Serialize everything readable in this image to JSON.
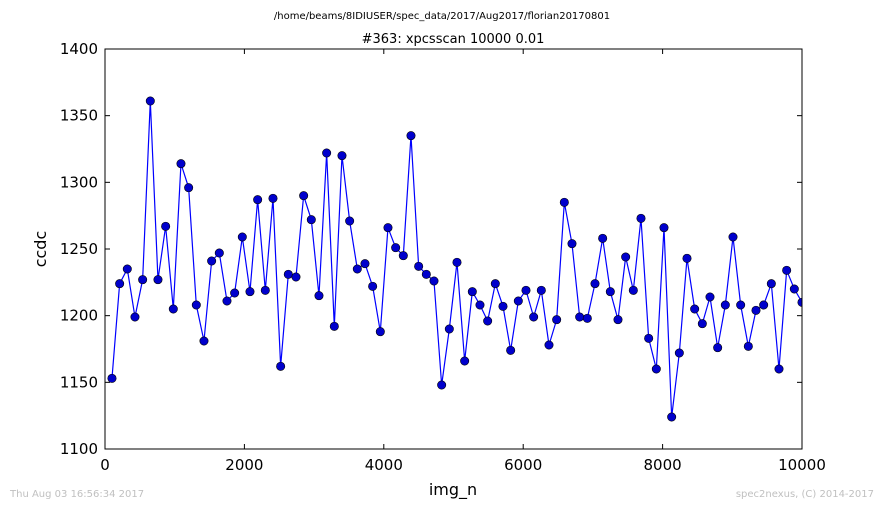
{
  "suptitle": "/home/beams/8IDIUSER/spec_data/2017/Aug2017/florian20170801",
  "footer": {
    "left": "Thu Aug 03 16:56:34 2017",
    "right": "spec2nexus, (C) 2014-2017"
  },
  "colors": {
    "line": "#0000ff",
    "marker": "#0000cc",
    "axes": "#000000",
    "footer_text": "#c0c0c0"
  },
  "chart_data": {
    "type": "line",
    "title": "#363: xpcsscan 10000 0.01",
    "xlabel": "img_n",
    "ylabel": "ccdc",
    "xlim": [
      0,
      10000
    ],
    "ylim": [
      1100,
      1400
    ],
    "xticks": [
      0,
      2000,
      4000,
      6000,
      8000,
      10000
    ],
    "yticks": [
      1100,
      1150,
      1200,
      1250,
      1300,
      1350,
      1400
    ],
    "grid": false,
    "legend": "none",
    "series": [
      {
        "marker": "circle",
        "x": [
          100,
          210,
          320,
          430,
          540,
          650,
          760,
          870,
          980,
          1090,
          1200,
          1310,
          1420,
          1530,
          1640,
          1750,
          1860,
          1970,
          2080,
          2190,
          2300,
          2410,
          2520,
          2630,
          2740,
          2850,
          2960,
          3070,
          3180,
          3290,
          3400,
          3510,
          3620,
          3730,
          3840,
          3950,
          4060,
          4170,
          4280,
          4390,
          4500,
          4610,
          4720,
          4830,
          4940,
          5050,
          5160,
          5270,
          5380,
          5490,
          5600,
          5710,
          5820,
          5930,
          6040,
          6150,
          6260,
          6370,
          6480,
          6590,
          6700,
          6810,
          6920,
          7030,
          7140,
          7250,
          7360,
          7470,
          7580,
          7690,
          7800,
          7910,
          8020,
          8130,
          8240,
          8350,
          8460,
          8570,
          8680,
          8790,
          8900,
          9010,
          9120,
          9230,
          9340,
          9450,
          9560,
          9670,
          9780,
          9890,
          10000
        ],
        "y": [
          1153,
          1224,
          1235,
          1199,
          1227,
          1361,
          1227,
          1267,
          1205,
          1314,
          1296,
          1208,
          1181,
          1241,
          1247,
          1211,
          1217,
          1259,
          1218,
          1287,
          1219,
          1288,
          1162,
          1231,
          1229,
          1290,
          1272,
          1215,
          1322,
          1192,
          1320,
          1271,
          1235,
          1239,
          1222,
          1188,
          1266,
          1251,
          1245,
          1335,
          1237,
          1231,
          1226,
          1148,
          1190,
          1240,
          1166,
          1218,
          1208,
          1196,
          1224,
          1207,
          1174,
          1211,
          1219,
          1199,
          1219,
          1178,
          1197,
          1285,
          1254,
          1199,
          1198,
          1224,
          1258,
          1218,
          1197,
          1244,
          1219,
          1273,
          1183,
          1160,
          1266,
          1124,
          1172,
          1243,
          1205,
          1194,
          1214,
          1176,
          1208,
          1259,
          1208,
          1177,
          1204,
          1208,
          1224,
          1160,
          1234,
          1220,
          1210
        ]
      }
    ]
  }
}
